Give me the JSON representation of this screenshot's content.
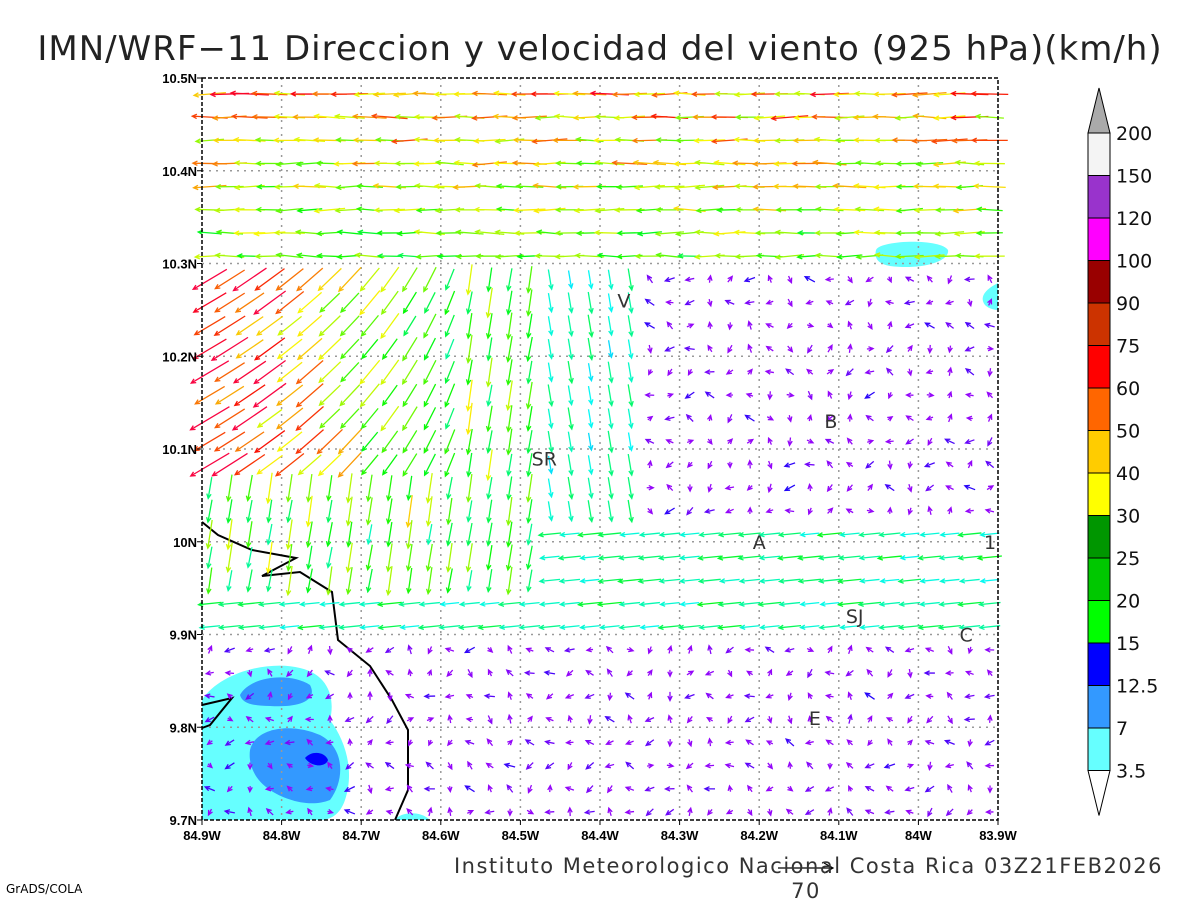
{
  "title": "IMN/WRF−11 Direccion y velocidad del viento (925 hPa)(km/h)",
  "footer": "Instituto Meteorologico Nacional Costa Rica 03Z21FEB2026",
  "credit": "GrADS/COLA",
  "reference_vector": {
    "label": "70",
    "speed_kmh": 70
  },
  "map": {
    "lon_range": [
      -84.9,
      -83.9
    ],
    "lat_range": [
      9.7,
      10.5
    ],
    "x_ticks": [
      "84.9W",
      "84.8W",
      "84.7W",
      "84.6W",
      "84.5W",
      "84.4W",
      "84.3W",
      "84.2W",
      "84.1W",
      "84W",
      "83.9W"
    ],
    "y_ticks": [
      "9.7N",
      "9.8N",
      "9.9N",
      "10N",
      "10.1N",
      "10.2N",
      "10.3N",
      "10.4N",
      "10.5N"
    ],
    "stations": [
      {
        "label": "V",
        "lon": -84.37,
        "lat": 10.26
      },
      {
        "label": "SR",
        "lon": -84.47,
        "lat": 10.09
      },
      {
        "label": "B",
        "lon": -84.11,
        "lat": 10.13
      },
      {
        "label": "A",
        "lon": -84.2,
        "lat": 10.0
      },
      {
        "label": "SJ",
        "lon": -84.08,
        "lat": 9.92
      },
      {
        "label": "C",
        "lon": -83.94,
        "lat": 9.9
      },
      {
        "label": "E",
        "lon": -84.13,
        "lat": 9.81
      },
      {
        "label": "1",
        "lon": -83.91,
        "lat": 10.0
      }
    ]
  },
  "colorbar": {
    "labels": [
      "3.5",
      "7",
      "12.5",
      "15",
      "20",
      "25",
      "30",
      "40",
      "50",
      "60",
      "75",
      "90",
      "100",
      "120",
      "150",
      "200"
    ],
    "colors": [
      "#66ffff",
      "#3399ff",
      "#0000ff",
      "#00ff00",
      "#00c800",
      "#009600",
      "#ffff00",
      "#ffcc00",
      "#ff6600",
      "#ff0000",
      "#cc3300",
      "#990000",
      "#ff00ff",
      "#9933cc",
      "#f4f4f4"
    ],
    "upper_arrow_color": "#aaaaaa",
    "lower_arrow_color": "#ffffff"
  }
}
